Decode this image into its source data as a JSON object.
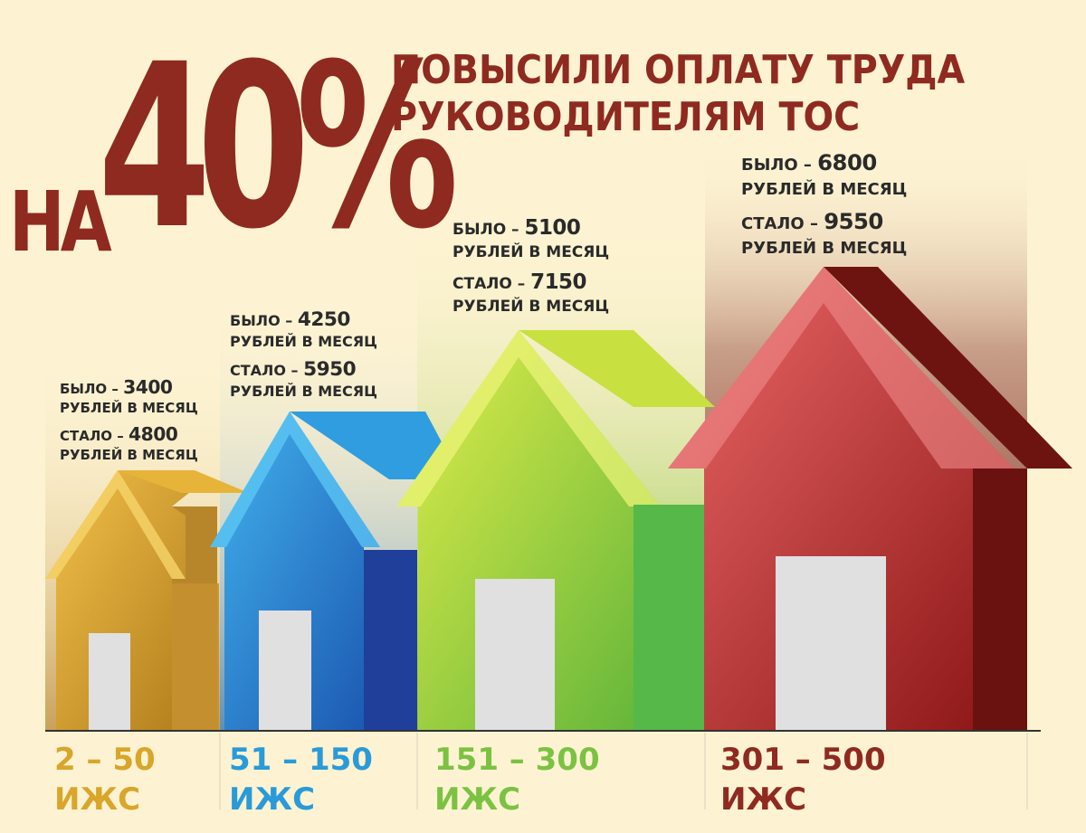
{
  "headline": {
    "prefix": "НА",
    "percent": "40%",
    "title_line1": "ПОВЫСИЛИ ОПЛАТУ ТРУДА",
    "title_line2": "РУКОВОДИТЕЛЯМ ТОС"
  },
  "tiers": [
    {
      "was_label": "БЫЛО – ",
      "was_value": "3400",
      "became_label": "СТАЛО – ",
      "became_value": "4800",
      "unit": "РУБЛЕЙ В МЕСЯЦ",
      "range": "2 – 50",
      "range_unit": "ИЖС",
      "color": "#d9a52a"
    },
    {
      "was_label": "БЫЛО – ",
      "was_value": "4250",
      "became_label": "СТАЛО – ",
      "became_value": "5950",
      "unit": "РУБЛЕЙ В МЕСЯЦ",
      "range": "51 – 150",
      "range_unit": "ИЖС",
      "color": "#2a9ad8"
    },
    {
      "was_label": "БЫЛО – ",
      "was_value": "5100",
      "became_label": "СТАЛО – ",
      "became_value": "7150",
      "unit": "РУБЛЕЙ В МЕСЯЦ",
      "range": "151 – 300",
      "range_unit": "ИЖС",
      "color": "#7cc242"
    },
    {
      "was_label": "БЫЛО – ",
      "was_value": "6800",
      "became_label": "СТАЛО – ",
      "became_value": "9550",
      "unit": "РУБЛЕЙ В МЕСЯЦ",
      "range": "301 – 500",
      "range_unit": "ИЖС",
      "color": "#8f2a20"
    }
  ]
}
